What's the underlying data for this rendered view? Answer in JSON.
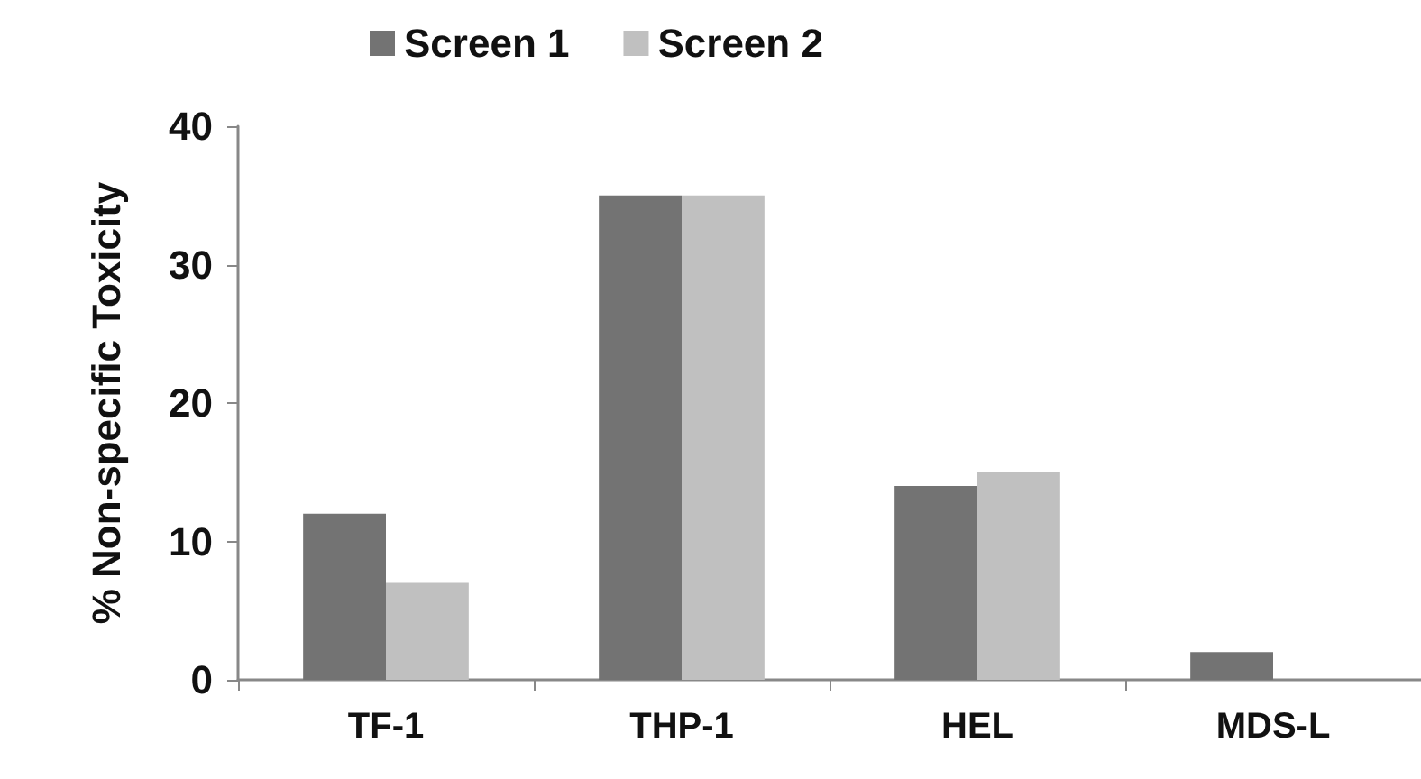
{
  "chart_data": {
    "type": "bar",
    "ylabel": "% Non-specific Toxicity",
    "categories": [
      "TF-1",
      "THP-1",
      "HEL",
      "MDS-L"
    ],
    "series": [
      {
        "name": "Screen 1",
        "color": "#737373",
        "values": [
          12,
          35,
          14,
          2
        ]
      },
      {
        "name": "Screen 2",
        "color": "#c0c0c0",
        "values": [
          7,
          35,
          15,
          0
        ]
      }
    ],
    "ylim": [
      0,
      40
    ],
    "yticks": [
      0,
      10,
      20,
      30,
      40
    ],
    "grid": false,
    "legend": "top"
  }
}
